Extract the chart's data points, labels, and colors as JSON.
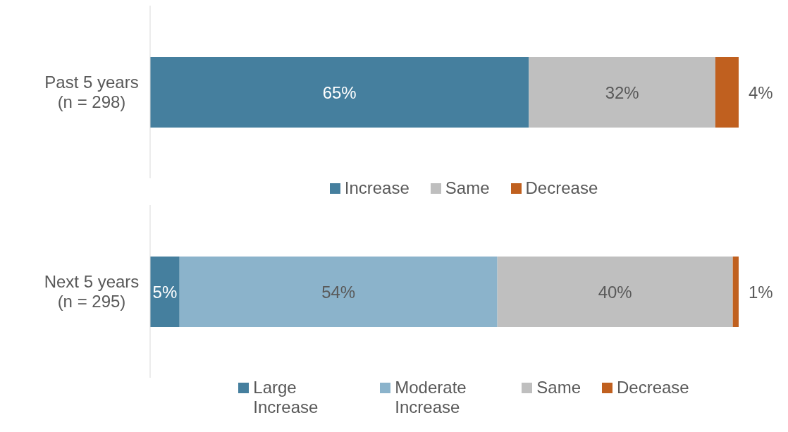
{
  "chart_data": [
    {
      "type": "bar",
      "orientation": "horizontal",
      "stacked": true,
      "categories": [
        "Past 5 years (n = 298)"
      ],
      "legend": "bottom",
      "grid": false,
      "tick_labels": "y",
      "series": [
        {
          "name": "Increase",
          "color": "#457f9e",
          "values": [
            65
          ],
          "value_labels": [
            "65%"
          ]
        },
        {
          "name": "Same",
          "color": "#bfbfbf",
          "values": [
            32
          ],
          "value_labels": [
            "32%"
          ]
        },
        {
          "name": "Decrease",
          "color": "#c0601f",
          "values": [
            4
          ],
          "value_labels": [
            "4%"
          ]
        }
      ]
    },
    {
      "type": "bar",
      "orientation": "horizontal",
      "stacked": true,
      "categories": [
        "Next 5 years (n = 295)"
      ],
      "legend": "bottom",
      "grid": false,
      "tick_labels": "y",
      "series": [
        {
          "name": "Large Increase",
          "color": "#457f9e",
          "values": [
            5
          ],
          "value_labels": [
            "5%"
          ]
        },
        {
          "name": "Moderate Increase",
          "color": "#8bb3cb",
          "values": [
            54
          ],
          "value_labels": [
            "54%"
          ]
        },
        {
          "name": "Same",
          "color": "#bfbfbf",
          "values": [
            40
          ],
          "value_labels": [
            "40%"
          ]
        },
        {
          "name": "Decrease",
          "color": "#c0601f",
          "values": [
            1
          ],
          "value_labels": [
            "1%"
          ]
        }
      ]
    }
  ]
}
